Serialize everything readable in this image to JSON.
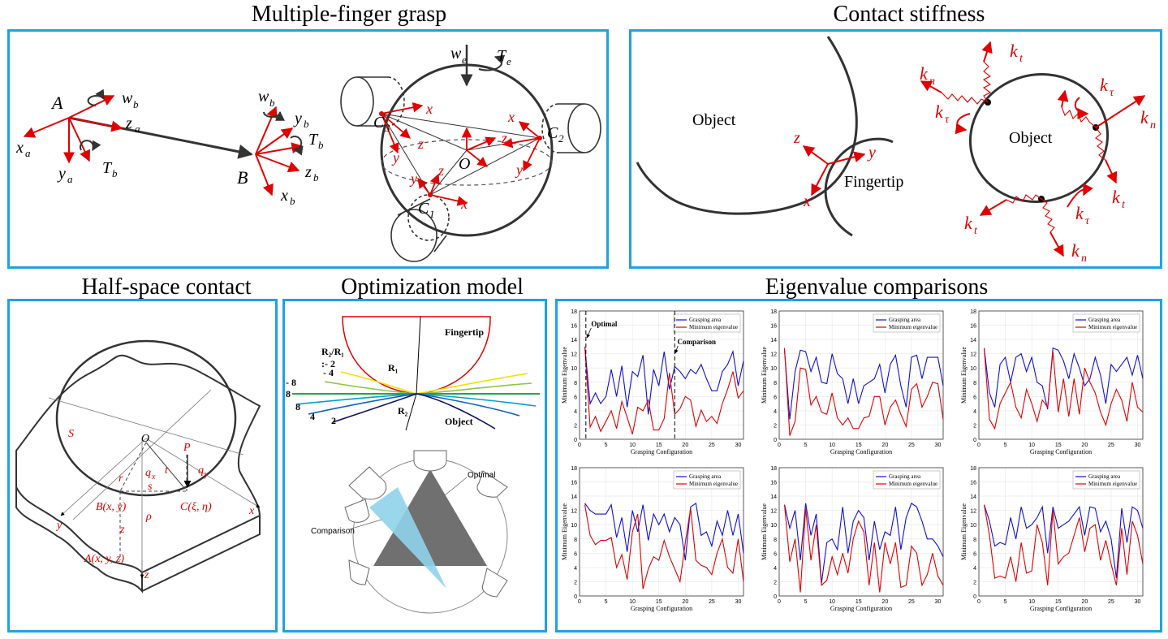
{
  "titles": {
    "grasp": "Multiple-finger grasp",
    "stiffness": "Contact stiffness",
    "halfspace": "Half-space contact",
    "optimization": "Optimization model",
    "eigen": "Eigenvalue comparisons"
  },
  "grasp_labels": {
    "A": "A",
    "B": "B",
    "xa": "x",
    "ya": "y",
    "za": "z",
    "a": "a",
    "b": "b",
    "wb": "w",
    "Tb": "T",
    "xb": "x",
    "yb": "y",
    "zb": "z",
    "we": "w",
    "e": "e",
    "Te": "T",
    "O": "O",
    "C1": "C",
    "C2": "C",
    "C3": "C",
    "one": "1",
    "two": "2",
    "three": "3",
    "x": "x",
    "y": "y",
    "z": "z"
  },
  "stiffness_labels": {
    "object_left": "Object",
    "fingertip": "Fingertip",
    "object_right": "Object",
    "z": "z",
    "y": "y",
    "x": "x",
    "k": "k",
    "n": "n",
    "t": "t",
    "tau": "τ"
  },
  "halfspace_labels": {
    "S": "S",
    "O": "O",
    "P": "P",
    "r": "r",
    "t": "t",
    "s": "s",
    "rho": "ρ",
    "qx": "q",
    "qy": "q",
    "x_sub": "x",
    "y_sub": "y",
    "B": "B(x, y)",
    "C": "C(ξ, η)",
    "A": "A(x, y, z)",
    "x": "x",
    "y": "y",
    "z": "z",
    "z2": "z"
  },
  "optimization_labels": {
    "fingertip": "Fingertip",
    "object": "Object",
    "R1": "R₁",
    "R2": "R₂",
    "ratio": "R₂/R₁",
    "ratio_neg2": ":- 2",
    "neg4": "- 4",
    "neg8": "- 8",
    "eight_mid": "8",
    "eight": "8",
    "four": "4",
    "two": "2",
    "optimal": "Optimal",
    "comparison": "Comparison"
  },
  "eigen_common": {
    "xlabel": "Grasping Configuration",
    "ylabel": "Minimum Eigenvalue",
    "legend_area": "Grasping area",
    "legend_eig": "Minimum eigenvalue",
    "yticks": [
      "0",
      "2",
      "4",
      "6",
      "8",
      "10",
      "12",
      "14",
      "16",
      "18"
    ],
    "xticks": [
      "0",
      "5",
      "10",
      "15",
      "20",
      "25",
      "30"
    ],
    "color_area": "#1010d0",
    "color_eig": "#e00000",
    "annot_optimal": "Optimal",
    "annot_comparison": "Comparison"
  },
  "chart_data": [
    {
      "type": "line",
      "ylim": [
        0,
        18
      ],
      "xlim": [
        0,
        31
      ],
      "x": [
        1,
        2,
        3,
        4,
        5,
        6,
        7,
        8,
        9,
        10,
        11,
        12,
        13,
        14,
        15,
        16,
        17,
        18,
        19,
        20,
        21,
        22,
        23,
        24,
        25,
        26,
        27,
        28,
        29,
        30,
        31
      ],
      "series": [
        {
          "name": "Grasping area",
          "values": [
            13,
            5,
            6.5,
            5,
            6,
            9.8,
            6,
            10.3,
            4.5,
            9.5,
            8.8,
            11.8,
            3.5,
            9.8,
            7.5,
            12.3,
            7,
            10.2,
            9.5,
            8.5,
            9.8,
            9.2,
            10.5,
            8.5,
            6.8,
            6.8,
            9.5,
            10.5,
            12.3,
            7.5,
            11
          ]
        },
        {
          "name": "Minimum eigenvalue",
          "values": [
            13,
            1.7,
            3.2,
            1.1,
            2.5,
            4,
            1.5,
            5.3,
            3.1,
            0.7,
            4.5,
            4,
            5.5,
            1.3,
            1.3,
            2.9,
            9.3,
            3.5,
            4.3,
            6,
            5.5,
            1.8,
            4.1,
            2.5,
            3.2,
            2.2,
            5,
            7,
            9.5,
            5.8,
            6.8
          ]
        }
      ]
    },
    {
      "type": "line",
      "ylim": [
        0,
        18
      ],
      "xlim": [
        0,
        31
      ],
      "x": [
        1,
        2,
        3,
        4,
        5,
        6,
        7,
        8,
        9,
        10,
        11,
        12,
        13,
        14,
        15,
        16,
        17,
        18,
        19,
        20,
        21,
        22,
        23,
        24,
        25,
        26,
        27,
        28,
        29,
        30,
        31
      ],
      "series": [
        {
          "name": "Grasping area",
          "values": [
            12.5,
            2.8,
            9.5,
            12.5,
            12.3,
            9.5,
            11.5,
            8,
            7.8,
            12,
            9.2,
            8.5,
            5,
            8.5,
            5,
            7.5,
            8,
            8.5,
            10.5,
            6.5,
            10.5,
            11.8,
            7.5,
            4.5,
            11.5,
            11.8,
            8.5,
            11.5,
            11.5,
            11.5,
            7.5
          ]
        },
        {
          "name": "Minimum eigenvalue",
          "values": [
            12.8,
            0.5,
            2.5,
            10,
            9.8,
            4.8,
            6,
            3.8,
            3.5,
            6.5,
            3,
            2,
            3,
            1.5,
            1.5,
            3,
            3.2,
            6,
            6,
            2,
            4.5,
            5.5,
            3.5,
            1.8,
            7,
            7.8,
            4.5,
            6,
            8,
            7.8,
            2.8
          ]
        }
      ]
    },
    {
      "type": "line",
      "ylim": [
        0,
        18
      ],
      "xlim": [
        0,
        31
      ],
      "x": [
        1,
        2,
        3,
        4,
        5,
        6,
        7,
        8,
        9,
        10,
        11,
        12,
        13,
        14,
        15,
        16,
        17,
        18,
        19,
        20,
        21,
        22,
        23,
        24,
        25,
        26,
        27,
        28,
        29,
        30,
        31
      ],
      "series": [
        {
          "name": "Grasping area",
          "values": [
            12.8,
            6.5,
            4.5,
            10.5,
            11.5,
            8,
            11.5,
            12,
            9.5,
            11.5,
            8,
            7.5,
            4.2,
            12.8,
            12.5,
            11,
            8.5,
            12,
            10,
            7.5,
            8.5,
            11.5,
            9,
            5,
            10.5,
            9.5,
            10.5,
            11.5,
            9,
            11.8,
            8.5
          ]
        },
        {
          "name": "Minimum eigenvalue",
          "values": [
            12.8,
            2.8,
            1.5,
            5,
            6.5,
            8,
            4.5,
            3,
            7,
            5,
            2.5,
            5.5,
            4.5,
            12.3,
            3.8,
            8.5,
            3.2,
            8.5,
            3.5,
            10,
            8,
            6.5,
            3.8,
            2,
            5,
            7,
            5.5,
            2.5,
            8,
            4.5,
            3.8
          ]
        }
      ]
    },
    {
      "type": "line",
      "ylim": [
        0,
        18
      ],
      "xlim": [
        0,
        31
      ],
      "x": [
        1,
        2,
        3,
        4,
        5,
        6,
        7,
        8,
        9,
        10,
        11,
        12,
        13,
        14,
        15,
        16,
        17,
        18,
        19,
        20,
        21,
        22,
        23,
        24,
        25,
        26,
        27,
        28,
        29,
        30,
        31
      ],
      "series": [
        {
          "name": "Grasping area",
          "values": [
            13,
            12,
            11.5,
            11.5,
            11.5,
            12.8,
            8.2,
            11,
            6.2,
            12,
            9,
            12.8,
            7.8,
            11.5,
            10,
            11.5,
            9,
            11,
            10,
            5,
            12.5,
            13,
            8.5,
            9,
            7,
            10.5,
            8.5,
            12,
            8.5,
            11.5,
            6
          ]
        },
        {
          "name": "Minimum eigenvalue",
          "values": [
            12.8,
            8.5,
            7.2,
            7.8,
            7.8,
            8.2,
            4,
            5.8,
            2.3,
            9,
            11.5,
            1,
            3.8,
            5.5,
            5,
            7.8,
            5.5,
            3.8,
            2,
            7.5,
            12.3,
            5,
            4.3,
            4,
            3,
            6,
            8,
            4,
            3.2,
            8,
            2
          ]
        }
      ]
    },
    {
      "type": "line",
      "ylim": [
        0,
        18
      ],
      "xlim": [
        0,
        31
      ],
      "x": [
        1,
        2,
        3,
        4,
        5,
        6,
        7,
        8,
        9,
        10,
        11,
        12,
        13,
        14,
        15,
        16,
        17,
        18,
        19,
        20,
        21,
        22,
        23,
        24,
        25,
        26,
        27,
        28,
        29,
        30,
        31
      ],
      "series": [
        {
          "name": "Grasping area",
          "values": [
            12.8,
            9.5,
            12,
            5,
            13,
            8.5,
            11.5,
            1.8,
            7.5,
            8,
            6.5,
            12.5,
            6,
            10.5,
            12,
            11,
            5,
            10.5,
            6.5,
            9,
            8.5,
            12.5,
            6.5,
            11,
            13,
            12.5,
            10.5,
            8,
            8,
            7,
            5.5
          ]
        },
        {
          "name": "Minimum eigenvalue",
          "values": [
            12.8,
            4.8,
            8,
            0.5,
            12.3,
            5,
            10,
            1.5,
            2.2,
            5.5,
            3,
            6,
            3.2,
            8,
            10.5,
            9,
            1.5,
            7.5,
            0.5,
            7.5,
            4.5,
            7.5,
            1.2,
            1.5,
            7,
            6,
            1.5,
            3,
            6,
            2.8,
            1.5
          ]
        }
      ]
    },
    {
      "type": "line",
      "ylim": [
        0,
        18
      ],
      "xlim": [
        0,
        31
      ],
      "x": [
        1,
        2,
        3,
        4,
        5,
        6,
        7,
        8,
        9,
        10,
        11,
        12,
        13,
        14,
        15,
        16,
        17,
        18,
        19,
        20,
        21,
        22,
        23,
        24,
        25,
        26,
        27,
        28,
        29,
        30,
        31
      ],
      "series": [
        {
          "name": "Grasping area",
          "values": [
            12.8,
            10.5,
            7,
            7.5,
            7.2,
            11,
            8,
            12.5,
            9.5,
            10,
            11,
            12.5,
            6,
            12.5,
            9.5,
            10,
            10.5,
            11.5,
            12.5,
            8.5,
            12.5,
            12.3,
            9,
            10.5,
            8,
            2.5,
            12.3,
            7.5,
            12.5,
            12,
            9.5
          ]
        },
        {
          "name": "Minimum eigenvalue",
          "values": [
            12.8,
            8.5,
            2.5,
            2.8,
            2.5,
            5.5,
            2,
            7.5,
            3.2,
            3.5,
            10,
            7.5,
            1.5,
            12,
            4.5,
            5.5,
            6,
            8.5,
            11,
            6.2,
            9.5,
            10,
            5,
            7.8,
            4.5,
            1.5,
            9.5,
            3,
            10.5,
            8.5,
            4.5
          ]
        }
      ]
    }
  ]
}
